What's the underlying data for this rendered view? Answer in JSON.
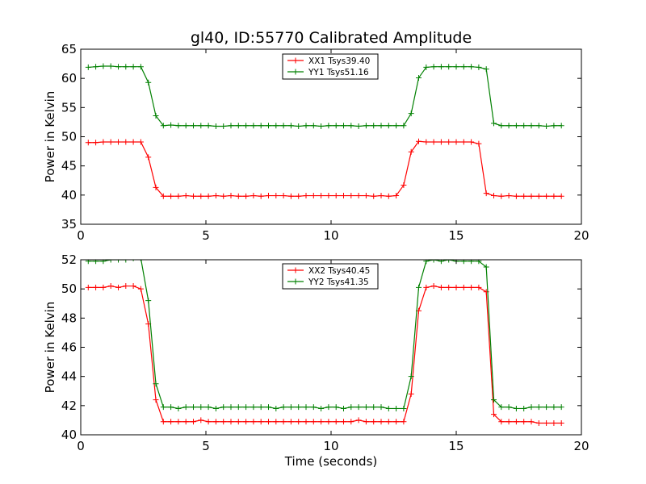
{
  "figure": {
    "title": "gl40, ID:55770 Calibrated Amplitude"
  },
  "chart_data": [
    {
      "type": "line",
      "xlabel": "",
      "ylabel": "Power in Kelvin",
      "xlim": [
        0,
        20
      ],
      "ylim": [
        35,
        65
      ],
      "xticks": [
        0,
        5,
        10,
        15,
        20
      ],
      "yticks": [
        35,
        40,
        45,
        50,
        55,
        60,
        65
      ],
      "grid": false,
      "legend_position": "top-center",
      "x": [
        0.3,
        0.6,
        0.9,
        1.2,
        1.5,
        1.8,
        2.1,
        2.4,
        2.7,
        3.0,
        3.3,
        3.6,
        3.9,
        4.2,
        4.5,
        4.8,
        5.1,
        5.4,
        5.7,
        6.0,
        6.3,
        6.6,
        6.9,
        7.2,
        7.5,
        7.8,
        8.1,
        8.4,
        8.7,
        9.0,
        9.3,
        9.6,
        9.9,
        10.2,
        10.5,
        10.8,
        11.1,
        11.4,
        11.7,
        12.0,
        12.3,
        12.6,
        12.9,
        13.2,
        13.5,
        13.8,
        14.1,
        14.4,
        14.7,
        15.0,
        15.3,
        15.6,
        15.9,
        16.2,
        16.5,
        16.8,
        17.1,
        17.4,
        17.7,
        18.0,
        18.3,
        18.6,
        18.9,
        19.2
      ],
      "series": [
        {
          "name": "XX1 Tsys39.40",
          "color": "#ff0000",
          "values": [
            49.0,
            49.0,
            49.1,
            49.1,
            49.1,
            49.1,
            49.1,
            49.1,
            46.5,
            41.3,
            39.8,
            39.8,
            39.8,
            39.9,
            39.8,
            39.8,
            39.8,
            39.9,
            39.8,
            39.9,
            39.8,
            39.8,
            39.9,
            39.8,
            39.9,
            39.9,
            39.9,
            39.8,
            39.8,
            39.9,
            39.9,
            39.9,
            39.9,
            39.9,
            39.9,
            39.9,
            39.9,
            39.9,
            39.8,
            39.9,
            39.8,
            39.9,
            41.7,
            47.4,
            49.2,
            49.1,
            49.1,
            49.1,
            49.1,
            49.1,
            49.1,
            49.1,
            48.8,
            40.3,
            39.9,
            39.8,
            39.9,
            39.8,
            39.8,
            39.8,
            39.8,
            39.8,
            39.8,
            39.8
          ]
        },
        {
          "name": "YY1 Tsys51.16",
          "color": "#008000",
          "values": [
            61.9,
            62.0,
            62.1,
            62.1,
            62.0,
            62.0,
            62.0,
            62.0,
            59.3,
            53.6,
            51.9,
            52.0,
            51.9,
            51.9,
            51.9,
            51.9,
            51.9,
            51.8,
            51.8,
            51.9,
            51.9,
            51.9,
            51.9,
            51.9,
            51.9,
            51.9,
            51.9,
            51.9,
            51.8,
            51.9,
            51.9,
            51.8,
            51.9,
            51.9,
            51.9,
            51.9,
            51.8,
            51.9,
            51.9,
            51.9,
            51.9,
            51.9,
            51.9,
            54.0,
            60.1,
            61.9,
            62.0,
            62.0,
            62.0,
            62.0,
            62.0,
            62.0,
            61.9,
            61.6,
            52.3,
            51.9,
            51.9,
            51.9,
            51.9,
            51.9,
            51.9,
            51.8,
            51.9,
            51.9
          ]
        }
      ]
    },
    {
      "type": "line",
      "xlabel": "Time (seconds)",
      "ylabel": "Power in Kelvin",
      "xlim": [
        0,
        20
      ],
      "ylim": [
        40,
        52
      ],
      "xticks": [
        0,
        5,
        10,
        15,
        20
      ],
      "yticks": [
        40,
        42,
        44,
        46,
        48,
        50,
        52
      ],
      "grid": false,
      "legend_position": "top-center",
      "x": [
        0.3,
        0.6,
        0.9,
        1.2,
        1.5,
        1.8,
        2.1,
        2.4,
        2.7,
        3.0,
        3.3,
        3.6,
        3.9,
        4.2,
        4.5,
        4.8,
        5.1,
        5.4,
        5.7,
        6.0,
        6.3,
        6.6,
        6.9,
        7.2,
        7.5,
        7.8,
        8.1,
        8.4,
        8.7,
        9.0,
        9.3,
        9.6,
        9.9,
        10.2,
        10.5,
        10.8,
        11.1,
        11.4,
        11.7,
        12.0,
        12.3,
        12.6,
        12.9,
        13.2,
        13.5,
        13.8,
        14.1,
        14.4,
        14.7,
        15.0,
        15.3,
        15.6,
        15.9,
        16.2,
        16.5,
        16.8,
        17.1,
        17.4,
        17.7,
        18.0,
        18.3,
        18.6,
        18.9,
        19.2
      ],
      "series": [
        {
          "name": "XX2 Tsys40.45",
          "color": "#ff0000",
          "values": [
            50.1,
            50.1,
            50.1,
            50.2,
            50.1,
            50.2,
            50.2,
            50.0,
            47.6,
            42.4,
            40.9,
            40.9,
            40.9,
            40.9,
            40.9,
            41.0,
            40.9,
            40.9,
            40.9,
            40.9,
            40.9,
            40.9,
            40.9,
            40.9,
            40.9,
            40.9,
            40.9,
            40.9,
            40.9,
            40.9,
            40.9,
            40.9,
            40.9,
            40.9,
            40.9,
            40.9,
            41.0,
            40.9,
            40.9,
            40.9,
            40.9,
            40.9,
            40.9,
            42.8,
            48.5,
            50.1,
            50.2,
            50.1,
            50.1,
            50.1,
            50.1,
            50.1,
            50.1,
            49.8,
            41.4,
            40.9,
            40.9,
            40.9,
            40.9,
            40.9,
            40.8,
            40.8,
            40.8,
            40.8
          ]
        },
        {
          "name": "YY2 Tsys41.35",
          "color": "#008000",
          "values": [
            51.9,
            51.9,
            51.9,
            52.0,
            52.0,
            52.0,
            52.1,
            52.1,
            49.2,
            43.5,
            41.9,
            41.9,
            41.8,
            41.9,
            41.9,
            41.9,
            41.9,
            41.8,
            41.9,
            41.9,
            41.9,
            41.9,
            41.9,
            41.9,
            41.9,
            41.8,
            41.9,
            41.9,
            41.9,
            41.9,
            41.9,
            41.8,
            41.9,
            41.9,
            41.8,
            41.9,
            41.9,
            41.9,
            41.9,
            41.9,
            41.8,
            41.8,
            41.8,
            44.0,
            50.1,
            51.9,
            52.0,
            51.9,
            52.0,
            51.9,
            51.9,
            51.9,
            51.9,
            51.5,
            42.4,
            41.9,
            41.9,
            41.8,
            41.8,
            41.9,
            41.9,
            41.9,
            41.9,
            41.9
          ]
        }
      ]
    }
  ]
}
